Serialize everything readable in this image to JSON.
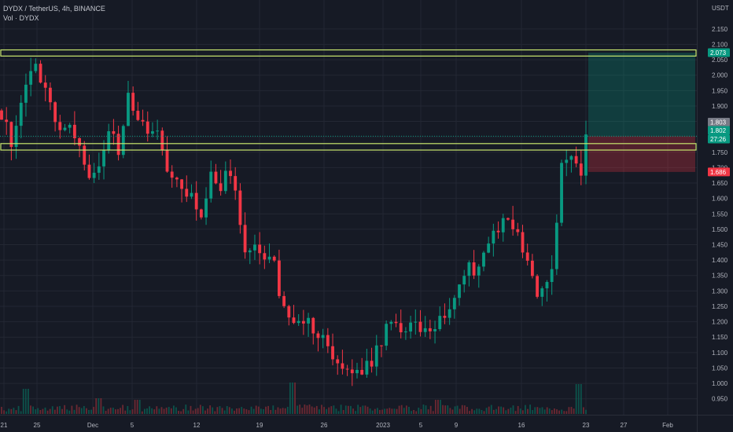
{
  "header": {
    "symbol_line": "DYDX / TetherUS, 4h, BINANCE",
    "volume_line": "Vol · DYDX"
  },
  "chart_data": {
    "type": "candlestick",
    "currency_label": "USDT",
    "ylim": [
      0.925,
      2.17
    ],
    "y_ticks": [
      "2.150",
      "2.100",
      "2.050",
      "2.000",
      "1.950",
      "1.900",
      "1.850",
      "1.800",
      "1.750",
      "1.700",
      "1.650",
      "1.600",
      "1.550",
      "1.500",
      "1.450",
      "1.400",
      "1.350",
      "1.300",
      "1.250",
      "1.200",
      "1.150",
      "1.100",
      "1.050",
      "1.000",
      "0.950"
    ],
    "x_tick_labels": [
      "21",
      "25",
      "Dec",
      "5",
      "12",
      "19",
      "26",
      "2023",
      "5",
      "9",
      "16",
      "23",
      "27",
      "Feb"
    ],
    "price_tags": [
      {
        "value": "2.073",
        "color": "#089981"
      },
      {
        "value": "1.803",
        "color": "#787b86"
      },
      {
        "value": "1.802",
        "color": "#089981"
      },
      {
        "value": "27:26",
        "color": "#089981"
      },
      {
        "value": "1.686",
        "color": "#f23645"
      }
    ],
    "horizontal_zones": [
      {
        "low": 2.062,
        "high": 2.082,
        "color": "#c8e66e"
      },
      {
        "low": 1.757,
        "high": 1.778,
        "color": "#c8e66e"
      }
    ],
    "position": {
      "entry": 1.802,
      "target": 2.073,
      "stop": 1.686,
      "profit_color": "#089981",
      "loss_color": "#f23645"
    },
    "anchors": [
      [
        0,
        1.88
      ],
      [
        2,
        1.78
      ],
      [
        4,
        1.92
      ],
      [
        7,
        2.03
      ],
      [
        9,
        1.95
      ],
      [
        11,
        1.85
      ],
      [
        14,
        1.84
      ],
      [
        16,
        1.78
      ],
      [
        18,
        1.66
      ],
      [
        20,
        1.72
      ],
      [
        22,
        1.82
      ],
      [
        24,
        1.75
      ],
      [
        26,
        1.92
      ],
      [
        28,
        1.87
      ],
      [
        30,
        1.83
      ],
      [
        31,
        1.84
      ],
      [
        33,
        1.76
      ],
      [
        35,
        1.65
      ],
      [
        37,
        1.64
      ],
      [
        39,
        1.62
      ],
      [
        41,
        1.53
      ],
      [
        43,
        1.7
      ],
      [
        45,
        1.64
      ],
      [
        46,
        1.69
      ],
      [
        48,
        1.62
      ],
      [
        50,
        1.41
      ],
      [
        52,
        1.43
      ],
      [
        54,
        1.41
      ],
      [
        56,
        1.4
      ],
      [
        57,
        1.3
      ],
      [
        59,
        1.19
      ],
      [
        61,
        1.2
      ],
      [
        63,
        1.21
      ],
      [
        65,
        1.15
      ],
      [
        67,
        1.13
      ],
      [
        69,
        1.06
      ],
      [
        71,
        1.04
      ],
      [
        73,
        1.03
      ],
      [
        75,
        1.05
      ],
      [
        77,
        1.1
      ],
      [
        79,
        1.18
      ],
      [
        81,
        1.19
      ],
      [
        83,
        1.17
      ],
      [
        85,
        1.19
      ],
      [
        87,
        1.16
      ],
      [
        89,
        1.2
      ],
      [
        91,
        1.21
      ],
      [
        93,
        1.29
      ],
      [
        95,
        1.37
      ],
      [
        97,
        1.37
      ],
      [
        99,
        1.43
      ],
      [
        101,
        1.49
      ],
      [
        103,
        1.54
      ],
      [
        104,
        1.53
      ],
      [
        105,
        1.51
      ],
      [
        107,
        1.44
      ],
      [
        109,
        1.35
      ],
      [
        110,
        1.29
      ],
      [
        112,
        1.33
      ],
      [
        113,
        1.35
      ],
      [
        115,
        1.7
      ],
      [
        117,
        1.74
      ],
      [
        119,
        1.68
      ],
      [
        120,
        1.8
      ]
    ],
    "volume_ylim": [
      0,
      1
    ],
    "volume_spikes": [
      [
        5,
        0.8
      ],
      [
        60,
        1.0
      ],
      [
        119,
        0.95
      ],
      [
        20,
        0.5
      ],
      [
        28,
        0.45
      ],
      [
        90,
        0.45
      ]
    ]
  }
}
